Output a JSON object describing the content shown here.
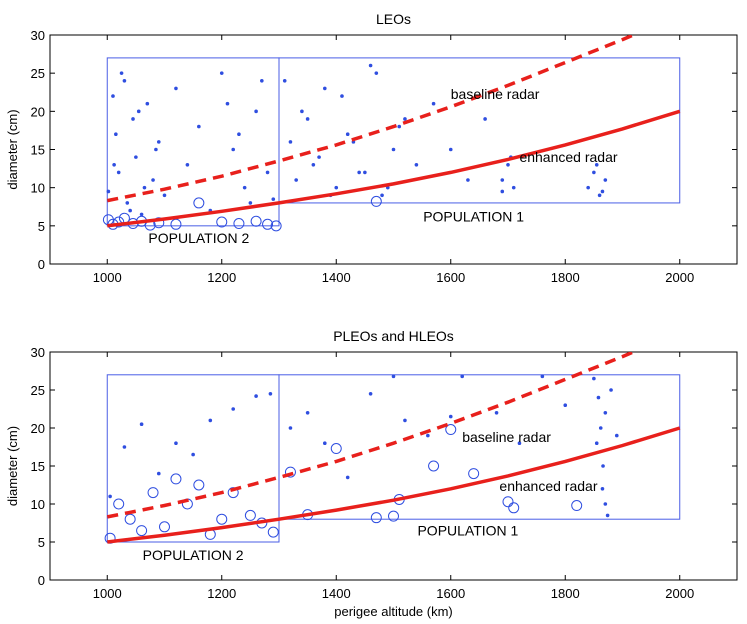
{
  "chart_data": [
    {
      "type": "scatter",
      "title": "LEOs",
      "xlabel": "",
      "ylabel": "diameter (cm)",
      "xlim": [
        900,
        2100
      ],
      "ylim": [
        0,
        30
      ],
      "xticks": [
        "1000",
        "1200",
        "1400",
        "1600",
        "1800",
        "2000"
      ],
      "yticks": [
        "0",
        "5",
        "10",
        "15",
        "20",
        "25",
        "30"
      ],
      "regions": [
        {
          "name": "POPULATION 2",
          "x": [
            1000,
            1300
          ],
          "y": [
            5,
            27
          ],
          "label_at": [
            1160,
            3.4
          ]
        },
        {
          "name": "POPULATION 1",
          "x": [
            1300,
            2000
          ],
          "y": [
            8,
            27
          ],
          "label_at": [
            1640,
            6.2
          ]
        }
      ],
      "curves": [
        {
          "name": "baseline radar",
          "style": "dashed",
          "x": [
            1000,
            1100,
            1200,
            1300,
            1400,
            1500,
            1600,
            1700,
            1800,
            1900,
            1950
          ],
          "y": [
            8.3,
            9.8,
            11.5,
            13.5,
            15.6,
            18.0,
            20.6,
            23.4,
            26.4,
            29.4,
            31.0
          ],
          "label_at": [
            1600,
            22.3
          ]
        },
        {
          "name": "enhanced radar",
          "style": "solid",
          "x": [
            1000,
            1100,
            1200,
            1300,
            1400,
            1500,
            1600,
            1700,
            1800,
            1900,
            2000
          ],
          "y": [
            5.0,
            5.9,
            6.9,
            8.0,
            9.2,
            10.5,
            12.0,
            13.7,
            15.6,
            17.7,
            20.0
          ],
          "label_at": [
            1720,
            14.0
          ]
        }
      ],
      "series": [
        {
          "name": "small dots",
          "x": [
            1002,
            1010,
            1015,
            1020,
            1030,
            1035,
            1045,
            1050,
            1060,
            1070,
            1080,
            1090,
            1100,
            1120,
            1140,
            1160,
            1180,
            1200,
            1220,
            1240,
            1260,
            1280,
            1290,
            1310,
            1330,
            1350,
            1370,
            1390,
            1410,
            1430,
            1450,
            1470,
            1490,
            1510,
            1540,
            1570,
            1600,
            1630,
            1660,
            1690,
            1700,
            1710,
            1840,
            1850,
            1860,
            1870,
            1012,
            1025,
            1040,
            1055,
            1065,
            1085,
            1210,
            1230,
            1250,
            1270,
            1320,
            1340,
            1360,
            1380,
            1400,
            1420,
            1440,
            1460,
            1480,
            1500,
            1520,
            1690,
            1705,
            1855,
            1865
          ],
          "y": [
            9.5,
            22,
            17,
            12,
            24,
            8,
            19,
            14,
            6.5,
            21,
            11,
            16,
            9,
            23,
            13,
            18,
            7,
            25,
            15,
            10,
            20,
            12,
            8.5,
            24,
            11,
            19,
            14,
            9,
            22,
            16,
            12,
            25,
            10,
            18,
            13,
            21,
            15,
            11,
            19,
            9.5,
            13,
            10,
            10,
            12,
            9,
            11,
            13,
            25,
            7,
            20,
            10,
            15,
            21,
            17,
            8,
            24,
            16,
            20,
            13,
            23,
            10,
            17,
            12,
            26,
            9,
            15,
            19,
            11,
            14,
            13,
            9.5
          ]
        },
        {
          "name": "large circles",
          "x": [
            1002,
            1010,
            1020,
            1030,
            1045,
            1060,
            1075,
            1090,
            1120,
            1160,
            1200,
            1230,
            1260,
            1280,
            1295,
            1470
          ],
          "y": [
            5.8,
            5.2,
            5.5,
            6.0,
            5.3,
            5.6,
            5.1,
            5.4,
            5.2,
            8.0,
            5.5,
            5.3,
            5.6,
            5.2,
            5.0,
            8.2
          ]
        }
      ]
    },
    {
      "type": "scatter",
      "title": "PLEOs and HLEOs",
      "xlabel": "perigee altitude (km)",
      "ylabel": "diameter (cm)",
      "xlim": [
        900,
        2100
      ],
      "ylim": [
        0,
        30
      ],
      "xticks": [
        "1000",
        "1200",
        "1400",
        "1600",
        "1800",
        "2000"
      ],
      "yticks": [
        "0",
        "5",
        "10",
        "15",
        "20",
        "25",
        "30"
      ],
      "regions": [
        {
          "name": "POPULATION 2",
          "x": [
            1000,
            1300
          ],
          "y": [
            5,
            27
          ],
          "label_at": [
            1150,
            3.3
          ]
        },
        {
          "name": "POPULATION 1",
          "x": [
            1300,
            2000
          ],
          "y": [
            8,
            27
          ],
          "label_at": [
            1630,
            6.5
          ]
        }
      ],
      "curves": [
        {
          "name": "baseline radar",
          "style": "dashed",
          "x": [
            1000,
            1100,
            1200,
            1300,
            1400,
            1500,
            1600,
            1700,
            1800,
            1900,
            1950
          ],
          "y": [
            8.3,
            9.8,
            11.5,
            13.5,
            15.6,
            18.0,
            20.6,
            23.4,
            26.4,
            29.4,
            31.0
          ],
          "label_at": [
            1620,
            18.8
          ]
        },
        {
          "name": "enhanced radar",
          "style": "solid",
          "x": [
            1000,
            1100,
            1200,
            1300,
            1400,
            1500,
            1600,
            1700,
            1800,
            1900,
            2000
          ],
          "y": [
            5.0,
            5.9,
            6.9,
            8.0,
            9.2,
            10.5,
            12.0,
            13.7,
            15.6,
            17.7,
            20.0
          ],
          "label_at": [
            1685,
            12.4
          ]
        }
      ],
      "series": [
        {
          "name": "small dots",
          "x": [
            1005,
            1030,
            1060,
            1090,
            1120,
            1150,
            1180,
            1220,
            1260,
            1285,
            1320,
            1350,
            1380,
            1420,
            1460,
            1500,
            1520,
            1560,
            1600,
            1620,
            1680,
            1720,
            1760,
            1800,
            1850,
            1858,
            1862,
            1866,
            1870,
            1874,
            1855,
            1865,
            1870,
            1880,
            1890
          ],
          "y": [
            11,
            17.5,
            20.5,
            14,
            18,
            16.5,
            21,
            22.5,
            24.2,
            24.5,
            20,
            22,
            18,
            13.5,
            24.5,
            26.8,
            21,
            19,
            21.5,
            26.8,
            22,
            18,
            26.8,
            23,
            26.5,
            24,
            20,
            15,
            10,
            8.5,
            18,
            12,
            22,
            25,
            19
          ]
        },
        {
          "name": "large circles",
          "x": [
            1005,
            1020,
            1040,
            1060,
            1080,
            1100,
            1120,
            1140,
            1160,
            1180,
            1200,
            1220,
            1250,
            1270,
            1290,
            1320,
            1350,
            1400,
            1470,
            1500,
            1510,
            1570,
            1600,
            1640,
            1700,
            1710,
            1820
          ],
          "y": [
            5.5,
            10,
            8,
            6.5,
            11.5,
            7,
            13.3,
            10,
            12.5,
            6,
            8,
            11.5,
            8.5,
            7.5,
            6.3,
            14.2,
            8.6,
            17.3,
            8.2,
            8.4,
            10.6,
            15,
            19.8,
            14,
            10.3,
            9.5,
            9.8
          ]
        }
      ]
    }
  ]
}
